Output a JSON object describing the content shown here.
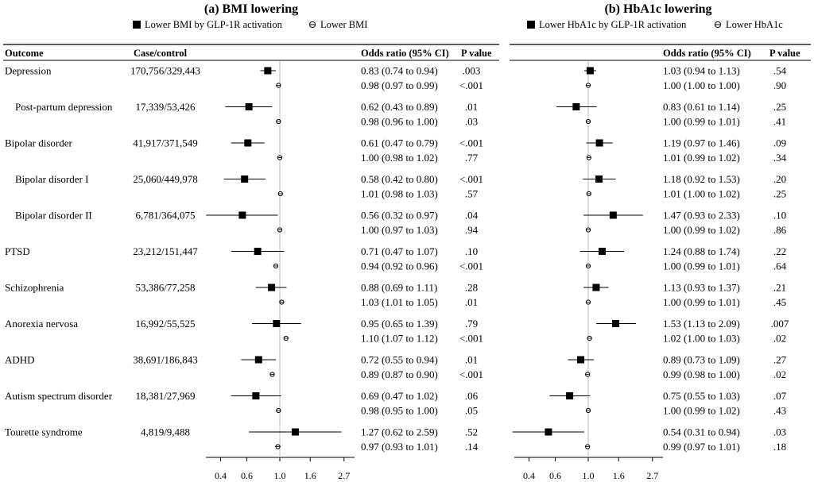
{
  "panels": [
    {
      "title": "(a) BMI lowering",
      "legend_filled": "Lower BMI by GLP-1R activation",
      "legend_open": "Lower BMI",
      "headers": {
        "outcome": "Outcome",
        "casecontrol": "Case/control",
        "or": "Odds ratio (95% CI)",
        "p": "P value"
      }
    },
    {
      "title": "(b) HbA1c lowering",
      "legend_filled": "Lower HbA1c by GLP-1R activation",
      "legend_open": "Lower HbA1c",
      "headers": {
        "or": "Odds ratio (95% CI)",
        "p": "P value"
      }
    }
  ],
  "chart_data": [
    {
      "type": "forest",
      "title": "(a) BMI lowering",
      "x_scale": "log",
      "x_ticks": [
        "0.4",
        "0.6",
        "1.0",
        "1.6",
        "2.7"
      ],
      "x_tick_values": [
        0.4,
        0.6,
        1.0,
        1.6,
        2.7
      ],
      "xlim": [
        0.3,
        3.0
      ],
      "reference_line": 1.0,
      "series": [
        {
          "name": "Lower BMI by GLP-1R activation",
          "marker": "square"
        },
        {
          "name": "Lower BMI",
          "marker": "open-circle"
        }
      ],
      "outcomes": [
        {
          "outcome": "Depression",
          "indent": false,
          "case_control": "170,756/329,443",
          "glp1r": {
            "or": 0.83,
            "lo": 0.74,
            "hi": 0.94,
            "label": "0.83 (0.74 to 0.94)",
            "p": ".003"
          },
          "bmi": {
            "or": 0.98,
            "lo": 0.97,
            "hi": 0.99,
            "label": "0.98 (0.97 to 0.99)",
            "p": "<.001"
          }
        },
        {
          "outcome": "Post-partum depression",
          "indent": true,
          "case_control": "17,339/53,426",
          "glp1r": {
            "or": 0.62,
            "lo": 0.43,
            "hi": 0.89,
            "label": "0.62 (0.43 to 0.89)",
            "p": ".01"
          },
          "bmi": {
            "or": 0.98,
            "lo": 0.96,
            "hi": 1.0,
            "label": "0.98 (0.96 to 1.00)",
            "p": ".03"
          }
        },
        {
          "outcome": "Bipolar disorder",
          "indent": false,
          "case_control": "41,917/371,549",
          "glp1r": {
            "or": 0.61,
            "lo": 0.47,
            "hi": 0.79,
            "label": "0.61 (0.47 to 0.79)",
            "p": "<.001"
          },
          "bmi": {
            "or": 1.0,
            "lo": 0.98,
            "hi": 1.02,
            "label": "1.00 (0.98 to 1.02)",
            "p": ".77"
          }
        },
        {
          "outcome": "Bipolar disorder I",
          "indent": true,
          "case_control": "25,060/449,978",
          "glp1r": {
            "or": 0.58,
            "lo": 0.42,
            "hi": 0.8,
            "label": "0.58 (0.42 to 0.80)",
            "p": "<.001"
          },
          "bmi": {
            "or": 1.01,
            "lo": 0.98,
            "hi": 1.03,
            "label": "1.01 (0.98 to 1.03)",
            "p": ".57"
          }
        },
        {
          "outcome": "Bipolar disorder II",
          "indent": true,
          "case_control": "6,781/364,075",
          "glp1r": {
            "or": 0.56,
            "lo": 0.32,
            "hi": 0.97,
            "label": "0.56 (0.32 to 0.97)",
            "p": ".04"
          },
          "bmi": {
            "or": 1.0,
            "lo": 0.97,
            "hi": 1.03,
            "label": "1.00 (0.97 to 1.03)",
            "p": ".94"
          }
        },
        {
          "outcome": "PTSD",
          "indent": false,
          "case_control": "23,212/151,447",
          "glp1r": {
            "or": 0.71,
            "lo": 0.47,
            "hi": 1.07,
            "label": "0.71 (0.47 to 1.07)",
            "p": ".10"
          },
          "bmi": {
            "or": 0.94,
            "lo": 0.92,
            "hi": 0.96,
            "label": "0.94 (0.92 to 0.96)",
            "p": "<.001"
          }
        },
        {
          "outcome": "Schizophrenia",
          "indent": false,
          "case_control": "53,386/77,258",
          "glp1r": {
            "or": 0.88,
            "lo": 0.69,
            "hi": 1.11,
            "label": "0.88 (0.69 to 1.11)",
            "p": ".28"
          },
          "bmi": {
            "or": 1.03,
            "lo": 1.01,
            "hi": 1.05,
            "label": "1.03 (1.01 to 1.05)",
            "p": ".01"
          }
        },
        {
          "outcome": "Anorexia nervosa",
          "indent": false,
          "case_control": "16,992/55,525",
          "glp1r": {
            "or": 0.95,
            "lo": 0.65,
            "hi": 1.39,
            "label": "0.95 (0.65 to 1.39)",
            "p": ".79"
          },
          "bmi": {
            "or": 1.1,
            "lo": 1.07,
            "hi": 1.12,
            "label": "1.10 (1.07 to 1.12)",
            "p": "<.001"
          }
        },
        {
          "outcome": "ADHD",
          "indent": false,
          "case_control": "38,691/186,843",
          "glp1r": {
            "or": 0.72,
            "lo": 0.55,
            "hi": 0.94,
            "label": "0.72 (0.55 to 0.94)",
            "p": ".01"
          },
          "bmi": {
            "or": 0.89,
            "lo": 0.87,
            "hi": 0.9,
            "label": "0.89 (0.87 to 0.90)",
            "p": "<.001"
          }
        },
        {
          "outcome": "Autism spectrum disorder",
          "indent": false,
          "case_control": "18,381/27,969",
          "glp1r": {
            "or": 0.69,
            "lo": 0.47,
            "hi": 1.02,
            "label": "0.69 (0.47 to 1.02)",
            "p": ".06"
          },
          "bmi": {
            "or": 0.98,
            "lo": 0.95,
            "hi": 1.0,
            "label": "0.98 (0.95 to 1.00)",
            "p": ".05"
          }
        },
        {
          "outcome": "Tourette syndrome",
          "indent": false,
          "case_control": "4,819/9,488",
          "glp1r": {
            "or": 1.27,
            "lo": 0.62,
            "hi": 2.59,
            "label": "1.27 (0.62 to 2.59)",
            "p": ".52"
          },
          "bmi": {
            "or": 0.97,
            "lo": 0.93,
            "hi": 1.01,
            "label": "0.97 (0.93 to 1.01)",
            "p": ".14"
          }
        }
      ]
    },
    {
      "type": "forest",
      "title": "(b) HbA1c lowering",
      "x_scale": "log",
      "x_ticks": [
        "0.4",
        "0.6",
        "1.0",
        "1.6",
        "2.7"
      ],
      "x_tick_values": [
        0.4,
        0.6,
        1.0,
        1.6,
        2.7
      ],
      "xlim": [
        0.3,
        3.0
      ],
      "reference_line": 1.0,
      "series": [
        {
          "name": "Lower HbA1c by GLP-1R activation",
          "marker": "square"
        },
        {
          "name": "Lower HbA1c",
          "marker": "open-circle"
        }
      ],
      "outcomes": [
        {
          "outcome": "Depression",
          "glp1r": {
            "or": 1.03,
            "lo": 0.94,
            "hi": 1.13,
            "label": "1.03 (0.94 to 1.13)",
            "p": ".54"
          },
          "hba1c": {
            "or": 1.0,
            "lo": 1.0,
            "hi": 1.0,
            "label": "1.00 (1.00 to 1.00)",
            "p": ".90"
          }
        },
        {
          "outcome": "Post-partum depression",
          "glp1r": {
            "or": 0.83,
            "lo": 0.61,
            "hi": 1.14,
            "label": "0.83 (0.61 to 1.14)",
            "p": ".25"
          },
          "hba1c": {
            "or": 1.0,
            "lo": 0.99,
            "hi": 1.01,
            "label": "1.00 (0.99 to 1.01)",
            "p": ".41"
          }
        },
        {
          "outcome": "Bipolar disorder",
          "glp1r": {
            "or": 1.19,
            "lo": 0.97,
            "hi": 1.46,
            "label": "1.19 (0.97 to 1.46)",
            "p": ".09"
          },
          "hba1c": {
            "or": 1.01,
            "lo": 0.99,
            "hi": 1.02,
            "label": "1.01 (0.99 to 1.02)",
            "p": ".34"
          }
        },
        {
          "outcome": "Bipolar disorder I",
          "glp1r": {
            "or": 1.18,
            "lo": 0.92,
            "hi": 1.53,
            "label": "1.18 (0.92 to 1.53)",
            "p": ".20"
          },
          "hba1c": {
            "or": 1.01,
            "lo": 1.0,
            "hi": 1.02,
            "label": "1.01 (1.00 to 1.02)",
            "p": ".25"
          }
        },
        {
          "outcome": "Bipolar disorder II",
          "glp1r": {
            "or": 1.47,
            "lo": 0.93,
            "hi": 2.33,
            "label": "1.47 (0.93 to 2.33)",
            "p": ".10"
          },
          "hba1c": {
            "or": 1.0,
            "lo": 0.99,
            "hi": 1.02,
            "label": "1.00 (0.99 to 1.02)",
            "p": ".86"
          }
        },
        {
          "outcome": "PTSD",
          "glp1r": {
            "or": 1.24,
            "lo": 0.88,
            "hi": 1.74,
            "label": "1.24 (0.88 to 1.74)",
            "p": ".22"
          },
          "hba1c": {
            "or": 1.0,
            "lo": 0.99,
            "hi": 1.01,
            "label": "1.00 (0.99 to 1.01)",
            "p": ".64"
          }
        },
        {
          "outcome": "Schizophrenia",
          "glp1r": {
            "or": 1.13,
            "lo": 0.93,
            "hi": 1.37,
            "label": "1.13 (0.93 to 1.37)",
            "p": ".21"
          },
          "hba1c": {
            "or": 1.0,
            "lo": 0.99,
            "hi": 1.01,
            "label": "1.00 (0.99 to 1.01)",
            "p": ".45"
          }
        },
        {
          "outcome": "Anorexia nervosa",
          "glp1r": {
            "or": 1.53,
            "lo": 1.13,
            "hi": 2.09,
            "label": "1.53 (1.13 to 2.09)",
            "p": ".007"
          },
          "hba1c": {
            "or": 1.02,
            "lo": 1.0,
            "hi": 1.03,
            "label": "1.02 (1.00 to 1.03)",
            "p": ".02"
          }
        },
        {
          "outcome": "ADHD",
          "glp1r": {
            "or": 0.89,
            "lo": 0.73,
            "hi": 1.09,
            "label": "0.89 (0.73 to 1.09)",
            "p": ".27"
          },
          "hba1c": {
            "or": 0.99,
            "lo": 0.98,
            "hi": 1.0,
            "label": "0.99 (0.98 to 1.00)",
            "p": ".02"
          }
        },
        {
          "outcome": "Autism spectrum disorder",
          "glp1r": {
            "or": 0.75,
            "lo": 0.55,
            "hi": 1.03,
            "label": "0.75 (0.55 to 1.03)",
            "p": ".07"
          },
          "hba1c": {
            "or": 1.0,
            "lo": 0.99,
            "hi": 1.02,
            "label": "1.00 (0.99 to 1.02)",
            "p": ".43"
          }
        },
        {
          "outcome": "Tourette syndrome",
          "glp1r": {
            "or": 0.54,
            "lo": 0.31,
            "hi": 0.94,
            "label": "0.54 (0.31 to 0.94)",
            "p": ".03"
          },
          "hba1c": {
            "or": 0.99,
            "lo": 0.97,
            "hi": 1.01,
            "label": "0.99 (0.97 to 1.01)",
            "p": ".18"
          }
        }
      ]
    }
  ]
}
